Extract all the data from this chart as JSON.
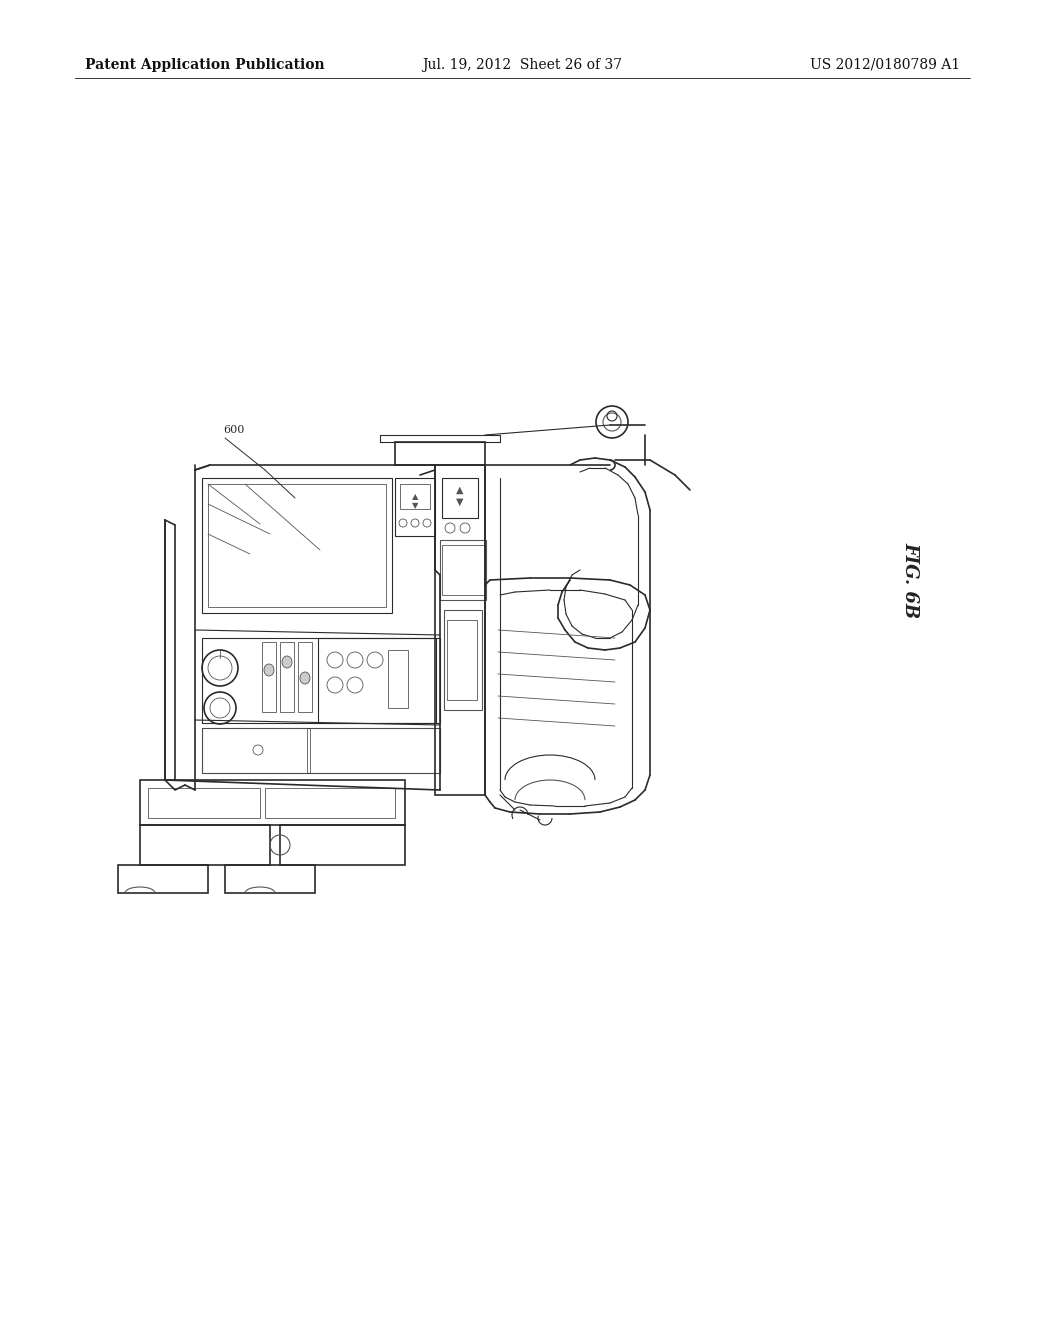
{
  "background_color": "#ffffff",
  "header_left": "Patent Application Publication",
  "header_center": "Jul. 19, 2012  Sheet 26 of 37",
  "header_right": "US 2012/0180789 A1",
  "figure_label": "FIG. 6B",
  "reference_number": "600",
  "header_fontsize": 10,
  "ref_fontsize": 8,
  "fig_label_fontsize": 13
}
